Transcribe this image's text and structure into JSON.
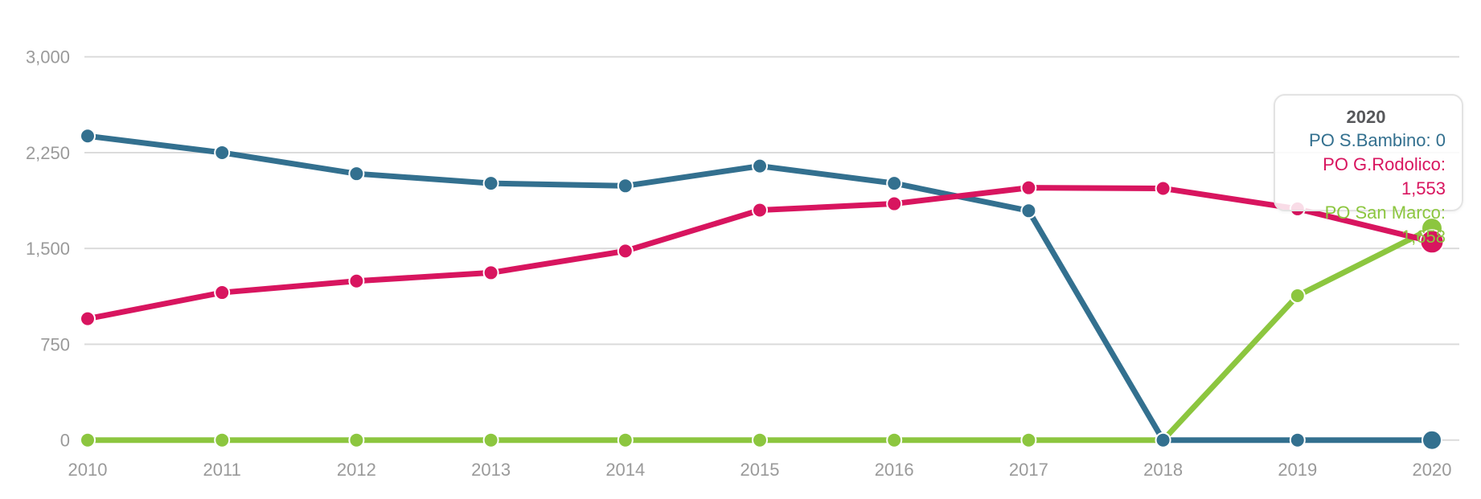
{
  "page": {
    "background_color": "#ffffff"
  },
  "chart_data": {
    "type": "line",
    "title": "",
    "xlabel": "",
    "ylabel": "",
    "x": [
      "2010",
      "2011",
      "2012",
      "2013",
      "2014",
      "2015",
      "2016",
      "2017",
      "2018",
      "2019",
      "2020"
    ],
    "series": [
      {
        "name": "PO S.Bambino",
        "color": "#33708f",
        "values": [
          2380,
          2250,
          2085,
          2010,
          1990,
          2145,
          2010,
          1795,
          0,
          0,
          0
        ]
      },
      {
        "name": "PO G.Rodolico",
        "color": "#d8155f",
        "values": [
          950,
          1155,
          1245,
          1310,
          1480,
          1800,
          1850,
          1975,
          1970,
          1810,
          1553
        ]
      },
      {
        "name": "PO San Marco",
        "color": "#8cc63f",
        "values": [
          0,
          0,
          0,
          0,
          0,
          0,
          0,
          0,
          0,
          1130,
          1658
        ]
      }
    ],
    "ylim": [
      0,
      3000
    ],
    "yticks": [
      {
        "value": 3000,
        "label": "3,000"
      },
      {
        "value": 2250,
        "label": "2,250"
      },
      {
        "value": 1500,
        "label": "1,500"
      },
      {
        "value": 750,
        "label": "750"
      },
      {
        "value": 0,
        "label": "0"
      }
    ],
    "grid": true,
    "gridline_color": "#d9d9d9",
    "axis_label_color": "#9a9a9a",
    "legend_position": "none",
    "hovered_x": "2020"
  },
  "tooltip": {
    "title": "2020",
    "title_color": "#57585b",
    "lines": [
      {
        "label": "PO S.Bambino",
        "value": "0",
        "text": "PO S.Bambino: 0",
        "color": "#33708f"
      },
      {
        "label": "PO G.Rodolico",
        "value": "1,553",
        "text": "PO G.Rodolico: 1,553",
        "color": "#d8155f"
      },
      {
        "label": "PO San Marco",
        "value": "1,658",
        "text": "PO San Marco: 1,658",
        "color": "#8cc63f"
      }
    ]
  }
}
